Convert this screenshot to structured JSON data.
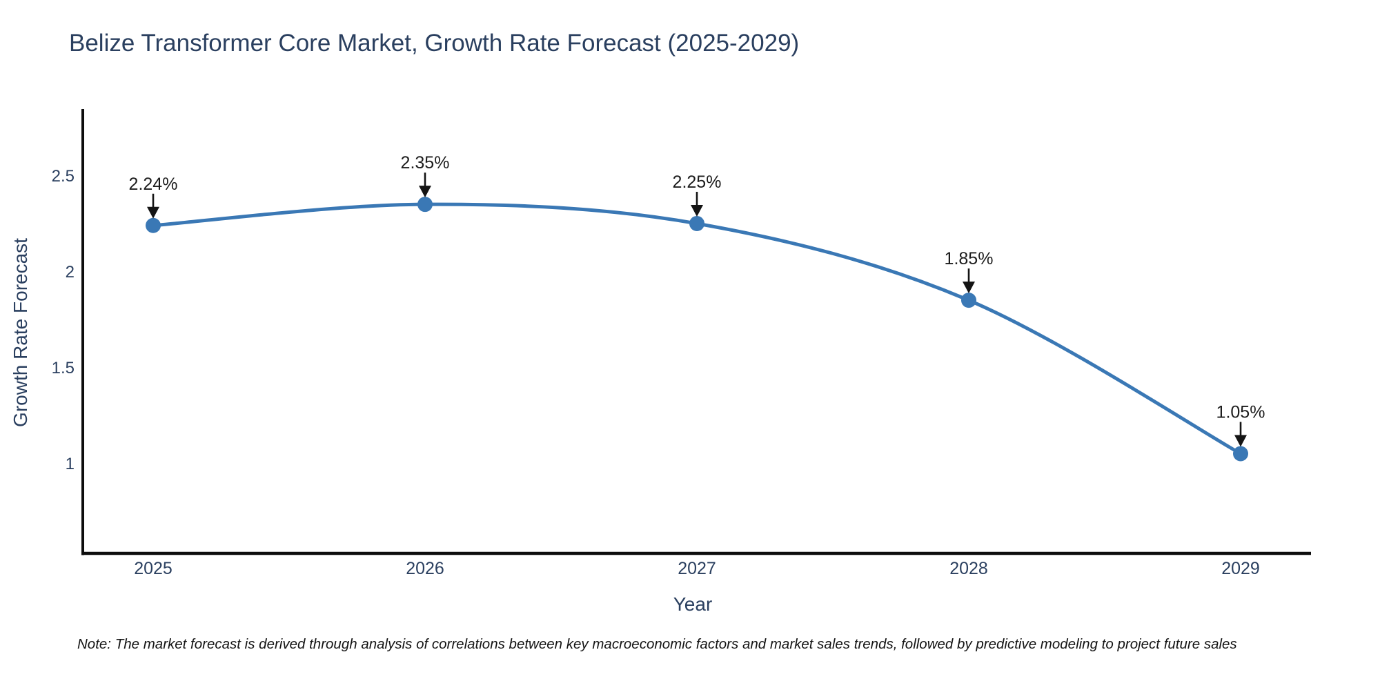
{
  "note": "Note: The market forecast is derived through analysis of correlations between key macroeconomic factors and market sales trends, followed by predictive modeling to project future sales",
  "chart_data": {
    "type": "line",
    "title": "Belize Transformer Core Market, Growth Rate Forecast (2025-2029)",
    "xlabel": "Year",
    "ylabel": "Growth Rate Forecast",
    "categories": [
      "2025",
      "2026",
      "2027",
      "2028",
      "2029"
    ],
    "series": [
      {
        "name": "Growth Rate Forecast",
        "values": [
          2.24,
          2.35,
          2.25,
          1.85,
          1.05
        ]
      }
    ],
    "annotations": [
      "2.24%",
      "2.35%",
      "2.25%",
      "1.85%",
      "1.05%"
    ],
    "yticks": [
      1,
      1.5,
      2,
      2.5
    ],
    "ylim": [
      0.53,
      2.84
    ],
    "line_shape": "spline",
    "grid": false,
    "legend": false,
    "colors": {
      "line": "#3a78b5",
      "marker": "#3a78b5",
      "annotation_text": "#1c1c1c",
      "arrow": "#141414",
      "axis_spine": "#0d0d0d",
      "tick_label": "#2a3f5f",
      "title": "#2a3f5f"
    }
  }
}
